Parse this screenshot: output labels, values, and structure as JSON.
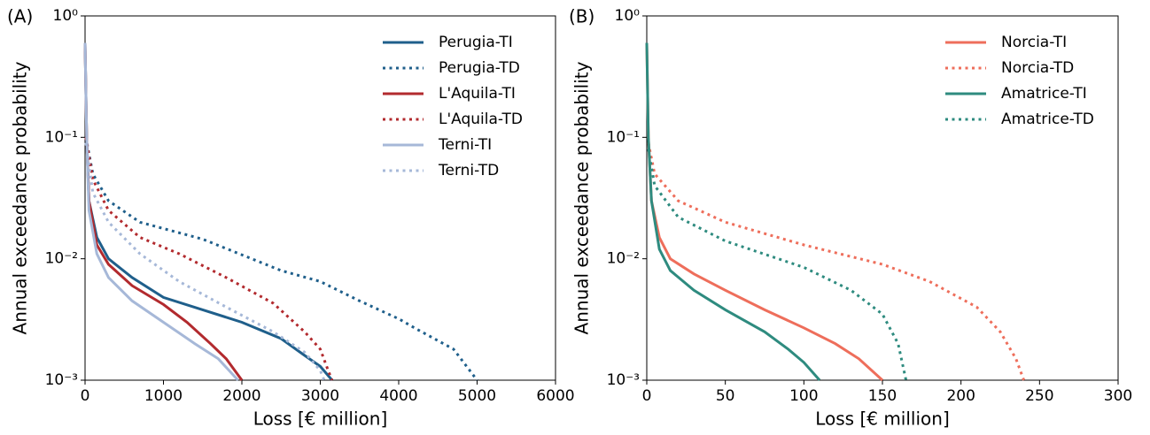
{
  "chart_data": [
    {
      "type": "line",
      "panel_label": "(A)",
      "xlabel": "Loss [€ million]",
      "ylabel": "Annual exceedance probability",
      "xlim": [
        0,
        6000
      ],
      "xticks": [
        0,
        1000,
        2000,
        3000,
        4000,
        5000,
        6000
      ],
      "ylim": [
        0.001,
        1
      ],
      "log_y": true,
      "yticks": [
        {
          "value": 0.001,
          "label": "10⁻³"
        },
        {
          "value": 0.01,
          "label": "10⁻²"
        },
        {
          "value": 0.1,
          "label": "10⁻¹"
        },
        {
          "value": 1,
          "label": "10⁰"
        }
      ],
      "legend": "upper right",
      "series": [
        {
          "name": "Perugia-TI",
          "color": "#1f5f8b",
          "linestyle": "solid",
          "x": [
            0,
            20,
            50,
            150,
            300,
            600,
            1000,
            1500,
            2000,
            2500,
            2800,
            3000,
            3150
          ],
          "values": [
            0.6,
            0.1,
            0.03,
            0.015,
            0.01,
            0.007,
            0.0048,
            0.0038,
            0.003,
            0.0022,
            0.0016,
            0.0013,
            0.001
          ]
        },
        {
          "name": "Perugia-TD",
          "color": "#1f5f8b",
          "linestyle": "dotted",
          "x": [
            10,
            100,
            300,
            700,
            1500,
            2500,
            3000,
            3500,
            4000,
            4200,
            4700,
            5000
          ],
          "values": [
            0.1,
            0.05,
            0.03,
            0.02,
            0.0145,
            0.008,
            0.0065,
            0.0045,
            0.0032,
            0.0027,
            0.0018,
            0.001
          ]
        },
        {
          "name": "L'Aquila-TI",
          "color": "#b22a2e",
          "linestyle": "solid",
          "x": [
            0,
            20,
            50,
            150,
            300,
            600,
            1000,
            1300,
            1600,
            1800,
            2000
          ],
          "values": [
            0.6,
            0.1,
            0.03,
            0.013,
            0.009,
            0.006,
            0.0042,
            0.003,
            0.002,
            0.0015,
            0.001
          ]
        },
        {
          "name": "L'Aquila-TD",
          "color": "#b22a2e",
          "linestyle": "dotted",
          "x": [
            10,
            100,
            300,
            700,
            1200,
            1800,
            2400,
            2800,
            3000,
            3100,
            3150
          ],
          "values": [
            0.1,
            0.045,
            0.025,
            0.015,
            0.011,
            0.007,
            0.0043,
            0.0025,
            0.0018,
            0.0012,
            0.001
          ]
        },
        {
          "name": "Terni-TI",
          "color": "#a6b8d8",
          "linestyle": "solid",
          "x": [
            0,
            20,
            50,
            150,
            300,
            600,
            1000,
            1400,
            1700,
            1950
          ],
          "values": [
            0.6,
            0.1,
            0.025,
            0.011,
            0.007,
            0.0045,
            0.003,
            0.002,
            0.0015,
            0.001
          ]
        },
        {
          "name": "Terni-TD",
          "color": "#a6b8d8",
          "linestyle": "dotted",
          "x": [
            10,
            100,
            300,
            700,
            1200,
            1800,
            2400,
            2800,
            3000,
            3050
          ],
          "values": [
            0.09,
            0.035,
            0.02,
            0.011,
            0.0065,
            0.004,
            0.0025,
            0.0017,
            0.0012,
            0.001
          ]
        }
      ]
    },
    {
      "type": "line",
      "panel_label": "(B)",
      "xlabel": "Loss [€ million]",
      "ylabel": "Annual exceedance probability",
      "xlim": [
        0,
        300
      ],
      "xticks": [
        0,
        50,
        100,
        150,
        200,
        250,
        300
      ],
      "ylim": [
        0.001,
        1
      ],
      "log_y": true,
      "yticks": [
        {
          "value": 0.001,
          "label": "10⁻³"
        },
        {
          "value": 0.01,
          "label": "10⁻²"
        },
        {
          "value": 0.1,
          "label": "10⁻¹"
        },
        {
          "value": 1,
          "label": "10⁰"
        }
      ],
      "legend": "upper right",
      "series": [
        {
          "name": "Norcia-TI",
          "color": "#ee6e5b",
          "linestyle": "solid",
          "x": [
            0,
            1,
            3,
            8,
            15,
            30,
            50,
            75,
            100,
            120,
            135,
            150
          ],
          "values": [
            0.6,
            0.1,
            0.03,
            0.015,
            0.01,
            0.0075,
            0.0055,
            0.0038,
            0.0027,
            0.002,
            0.0015,
            0.001
          ]
        },
        {
          "name": "Norcia-TD",
          "color": "#ee6e5b",
          "linestyle": "dotted",
          "x": [
            1,
            5,
            20,
            50,
            100,
            150,
            180,
            210,
            225,
            235,
            240
          ],
          "values": [
            0.09,
            0.05,
            0.03,
            0.02,
            0.013,
            0.009,
            0.0065,
            0.004,
            0.0025,
            0.0015,
            0.001
          ]
        },
        {
          "name": "Amatrice-TI",
          "color": "#2e8b7f",
          "linestyle": "solid",
          "x": [
            0,
            1,
            3,
            8,
            15,
            30,
            50,
            75,
            90,
            100,
            110
          ],
          "values": [
            0.6,
            0.1,
            0.03,
            0.012,
            0.008,
            0.0055,
            0.0038,
            0.0025,
            0.0018,
            0.0014,
            0.001
          ]
        },
        {
          "name": "Amatrice-TD",
          "color": "#2e8b7f",
          "linestyle": "dotted",
          "x": [
            1,
            5,
            20,
            50,
            100,
            130,
            150,
            160,
            165
          ],
          "values": [
            0.08,
            0.04,
            0.022,
            0.014,
            0.0085,
            0.0055,
            0.0035,
            0.002,
            0.001
          ]
        }
      ]
    }
  ]
}
